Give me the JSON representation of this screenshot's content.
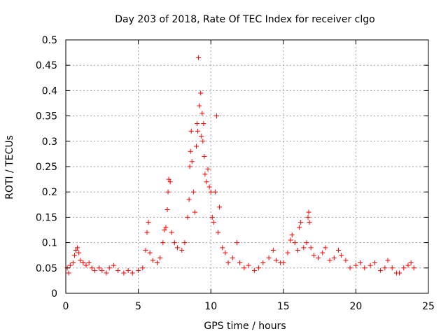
{
  "chart_data": {
    "type": "scatter",
    "title": "Day 203 of 2018, Rate Of TEC Index for receiver clgo",
    "xlabel": "GPS time / hours",
    "ylabel": "ROTI / TECUs",
    "xlim": [
      0,
      25
    ],
    "ylim": [
      0,
      0.5
    ],
    "x_ticks": [
      0,
      5,
      10,
      15,
      20,
      25
    ],
    "y_ticks": [
      0,
      0.05,
      0.1,
      0.15,
      0.2,
      0.25,
      0.3,
      0.35,
      0.4,
      0.45,
      0.5
    ],
    "x_tick_labels": [
      "0",
      "5",
      "10",
      "15",
      "20",
      "25"
    ],
    "y_tick_labels": [
      "0",
      "0.05",
      "0.1",
      "0.15",
      "0.2",
      "0.25",
      "0.3",
      "0.35",
      "0.4",
      "0.45",
      "0.5"
    ],
    "grid": true,
    "marker": "plus",
    "color": "#ff0000",
    "points": [
      [
        0.1,
        0.05
      ],
      [
        0.2,
        0.04
      ],
      [
        0.3,
        0.055
      ],
      [
        0.5,
        0.06
      ],
      [
        0.6,
        0.075
      ],
      [
        0.7,
        0.085
      ],
      [
        0.8,
        0.09
      ],
      [
        0.9,
        0.08
      ],
      [
        1.0,
        0.065
      ],
      [
        1.2,
        0.06
      ],
      [
        1.4,
        0.055
      ],
      [
        1.6,
        0.06
      ],
      [
        1.8,
        0.05
      ],
      [
        2.0,
        0.045
      ],
      [
        2.3,
        0.05
      ],
      [
        2.5,
        0.045
      ],
      [
        2.8,
        0.04
      ],
      [
        3.0,
        0.05
      ],
      [
        3.3,
        0.055
      ],
      [
        3.6,
        0.045
      ],
      [
        4.0,
        0.04
      ],
      [
        4.3,
        0.045
      ],
      [
        4.6,
        0.04
      ],
      [
        5.0,
        0.045
      ],
      [
        5.3,
        0.05
      ],
      [
        5.5,
        0.085
      ],
      [
        5.6,
        0.12
      ],
      [
        5.7,
        0.14
      ],
      [
        5.8,
        0.08
      ],
      [
        6.0,
        0.065
      ],
      [
        6.3,
        0.06
      ],
      [
        6.5,
        0.07
      ],
      [
        6.7,
        0.1
      ],
      [
        6.8,
        0.125
      ],
      [
        6.9,
        0.13
      ],
      [
        7.0,
        0.165
      ],
      [
        7.05,
        0.2
      ],
      [
        7.1,
        0.225
      ],
      [
        7.2,
        0.22
      ],
      [
        7.3,
        0.12
      ],
      [
        7.5,
        0.1
      ],
      [
        7.7,
        0.09
      ],
      [
        8.0,
        0.085
      ],
      [
        8.2,
        0.1
      ],
      [
        8.4,
        0.15
      ],
      [
        8.5,
        0.185
      ],
      [
        8.55,
        0.25
      ],
      [
        8.6,
        0.28
      ],
      [
        8.65,
        0.32
      ],
      [
        8.7,
        0.26
      ],
      [
        8.8,
        0.2
      ],
      [
        8.9,
        0.16
      ],
      [
        9.0,
        0.29
      ],
      [
        9.05,
        0.335
      ],
      [
        9.1,
        0.32
      ],
      [
        9.15,
        0.465
      ],
      [
        9.2,
        0.37
      ],
      [
        9.3,
        0.395
      ],
      [
        9.35,
        0.31
      ],
      [
        9.4,
        0.355
      ],
      [
        9.45,
        0.3
      ],
      [
        9.5,
        0.335
      ],
      [
        9.55,
        0.27
      ],
      [
        9.6,
        0.235
      ],
      [
        9.7,
        0.22
      ],
      [
        9.8,
        0.245
      ],
      [
        9.9,
        0.21
      ],
      [
        10.0,
        0.2
      ],
      [
        10.1,
        0.15
      ],
      [
        10.2,
        0.14
      ],
      [
        10.3,
        0.2
      ],
      [
        10.4,
        0.35
      ],
      [
        10.5,
        0.12
      ],
      [
        10.6,
        0.17
      ],
      [
        10.8,
        0.09
      ],
      [
        11.0,
        0.08
      ],
      [
        11.2,
        0.06
      ],
      [
        11.5,
        0.07
      ],
      [
        11.8,
        0.1
      ],
      [
        12.0,
        0.06
      ],
      [
        12.3,
        0.05
      ],
      [
        12.6,
        0.055
      ],
      [
        13.0,
        0.045
      ],
      [
        13.3,
        0.05
      ],
      [
        13.6,
        0.06
      ],
      [
        14.0,
        0.07
      ],
      [
        14.3,
        0.085
      ],
      [
        14.5,
        0.065
      ],
      [
        14.8,
        0.06
      ],
      [
        15.0,
        0.06
      ],
      [
        15.3,
        0.08
      ],
      [
        15.5,
        0.105
      ],
      [
        15.6,
        0.115
      ],
      [
        15.8,
        0.1
      ],
      [
        16.0,
        0.085
      ],
      [
        16.1,
        0.13
      ],
      [
        16.2,
        0.14
      ],
      [
        16.4,
        0.09
      ],
      [
        16.6,
        0.1
      ],
      [
        16.7,
        0.15
      ],
      [
        16.75,
        0.16
      ],
      [
        16.8,
        0.14
      ],
      [
        16.9,
        0.09
      ],
      [
        17.1,
        0.075
      ],
      [
        17.4,
        0.07
      ],
      [
        17.7,
        0.08
      ],
      [
        17.9,
        0.09
      ],
      [
        18.2,
        0.065
      ],
      [
        18.5,
        0.07
      ],
      [
        18.8,
        0.085
      ],
      [
        19.0,
        0.075
      ],
      [
        19.3,
        0.065
      ],
      [
        19.6,
        0.05
      ],
      [
        20.0,
        0.055
      ],
      [
        20.3,
        0.06
      ],
      [
        20.6,
        0.05
      ],
      [
        21.0,
        0.055
      ],
      [
        21.3,
        0.06
      ],
      [
        21.7,
        0.045
      ],
      [
        22.0,
        0.05
      ],
      [
        22.2,
        0.065
      ],
      [
        22.5,
        0.05
      ],
      [
        22.8,
        0.04
      ],
      [
        23.0,
        0.04
      ],
      [
        23.3,
        0.05
      ],
      [
        23.6,
        0.055
      ],
      [
        23.8,
        0.06
      ],
      [
        24.0,
        0.05
      ]
    ]
  }
}
